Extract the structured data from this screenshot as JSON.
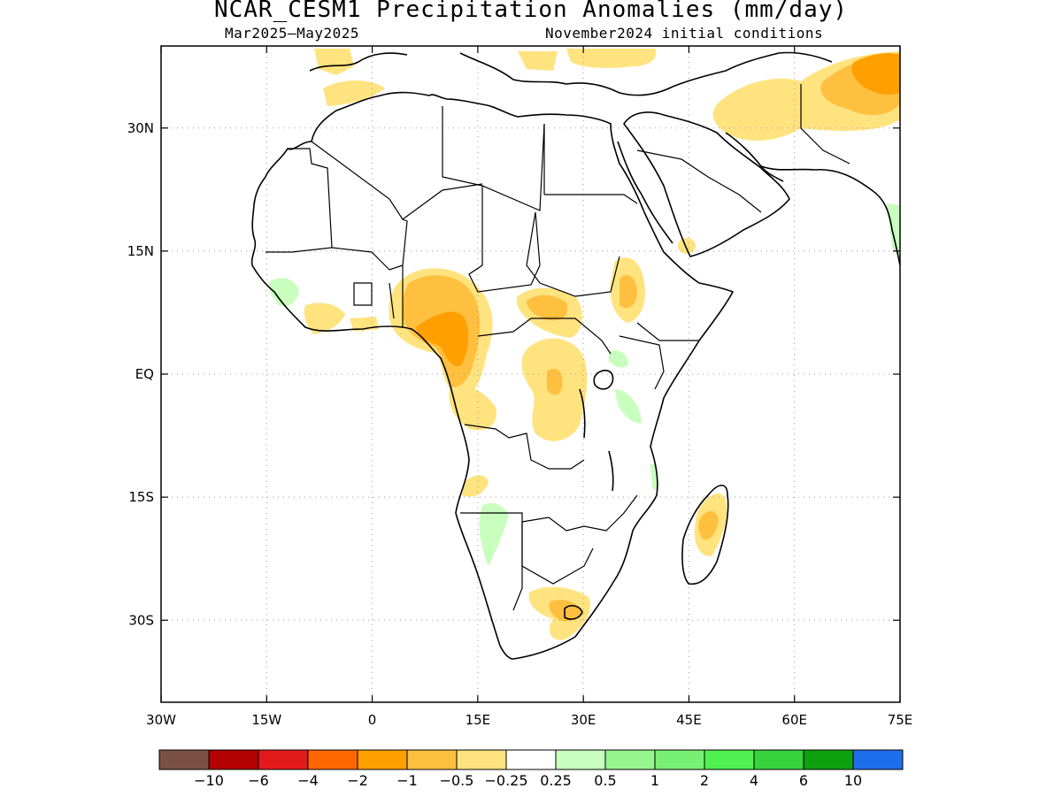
{
  "title": "NCAR_CESM1 Precipitation Anomalies (mm/day)",
  "period": "Mar2025–May2025",
  "init": "November2024 initial conditions",
  "lat_ticks": [
    {
      "value": 30,
      "label": "30N"
    },
    {
      "value": 15,
      "label": "15N"
    },
    {
      "value": 0,
      "label": "EQ"
    },
    {
      "value": -15,
      "label": "15S"
    },
    {
      "value": -30,
      "label": "30S"
    }
  ],
  "lon_ticks": [
    {
      "value": -30,
      "label": "30W"
    },
    {
      "value": -15,
      "label": "15W"
    },
    {
      "value": 0,
      "label": "0"
    },
    {
      "value": 15,
      "label": "15E"
    },
    {
      "value": 30,
      "label": "30E"
    },
    {
      "value": 45,
      "label": "45E"
    },
    {
      "value": 60,
      "label": "60E"
    },
    {
      "value": 75,
      "label": "75E"
    }
  ],
  "map_extent": {
    "lon": [
      -30,
      75
    ],
    "lat": [
      -40,
      40
    ]
  },
  "colorbar": {
    "colors": [
      "#7b5145",
      "#b30000",
      "#e31a1c",
      "#ff6600",
      "#ff9f00",
      "#ffbf3f",
      "#ffe37f",
      "#ffffff",
      "#c8ffbe",
      "#96f58c",
      "#78f073",
      "#50f050",
      "#37d23c",
      "#0fa00f",
      "#1e6eeb"
    ],
    "labels": [
      "−10",
      "−6",
      "−4",
      "−2",
      "−1",
      "−0.5",
      "−0.25",
      "0.25",
      "0.5",
      "1",
      "2",
      "4",
      "6",
      "10"
    ]
  },
  "anomaly_colors": {
    "light_orange": "#ffe37f",
    "orange": "#ffbf3f",
    "dark_orange": "#ff9f00",
    "light_green": "#c8ffbe"
  }
}
